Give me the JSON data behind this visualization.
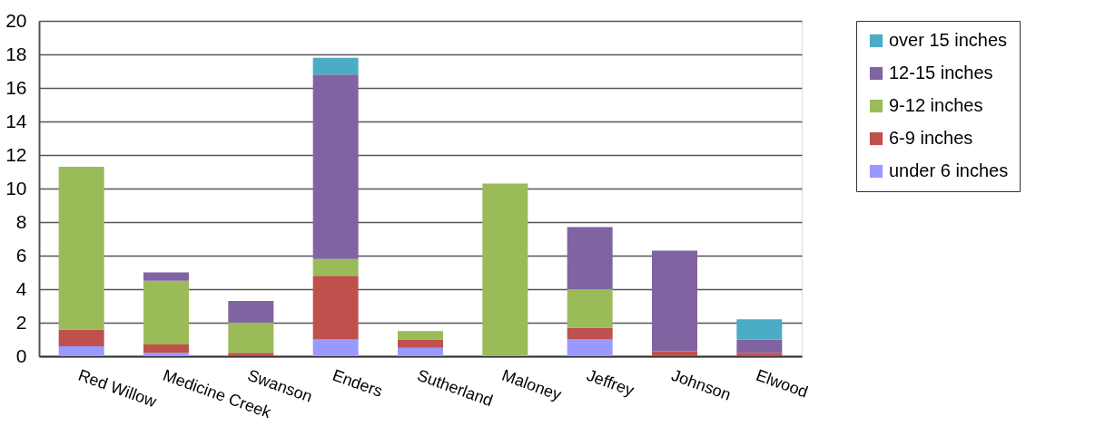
{
  "chart_data": {
    "type": "bar",
    "stacked": true,
    "categories": [
      "Red Willow",
      "Medicine Creek",
      "Swanson",
      "Enders",
      "Sutherland",
      "Maloney",
      "Jeffrey",
      "Johnson",
      "Elwood"
    ],
    "series": [
      {
        "name": "under 6 inches",
        "color": "#9999ff",
        "values": [
          0.6,
          0.2,
          0,
          1.0,
          0.5,
          0,
          1.0,
          0,
          0
        ]
      },
      {
        "name": "6-9 inches",
        "color": "#c0504d",
        "values": [
          1.0,
          0.5,
          0.2,
          3.8,
          0.5,
          0,
          0.7,
          0.3,
          0.2
        ]
      },
      {
        "name": "9-12 inches",
        "color": "#9bbb59",
        "values": [
          9.7,
          3.8,
          1.8,
          1.0,
          0.5,
          10.3,
          2.3,
          0,
          0
        ]
      },
      {
        "name": "12-15 inches",
        "color": "#8064a2",
        "values": [
          0,
          0.5,
          1.3,
          11.0,
          0,
          0,
          3.7,
          6.0,
          0.8
        ]
      },
      {
        "name": "over 15 inches",
        "color": "#4bacc6",
        "values": [
          0,
          0,
          0,
          1.0,
          0,
          0,
          0,
          0,
          1.2
        ]
      }
    ],
    "ylim": [
      0,
      20
    ],
    "yticks": [
      0,
      2,
      4,
      6,
      8,
      10,
      12,
      14,
      16,
      18,
      20
    ],
    "grid": "y",
    "legend": "right"
  }
}
